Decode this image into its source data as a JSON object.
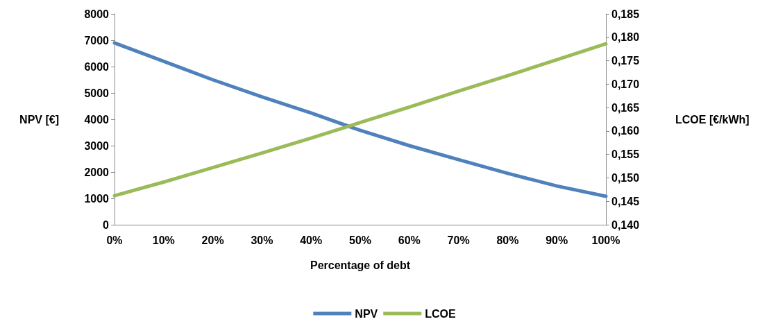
{
  "chart_data": {
    "type": "line",
    "xlabel": "Percentage of debt",
    "ylabel": "NPV [€]",
    "y2label": "LCOE [€/kWh]",
    "categories": [
      "0%",
      "10%",
      "20%",
      "30%",
      "40%",
      "50%",
      "60%",
      "70%",
      "80%",
      "90%",
      "100%"
    ],
    "series": [
      {
        "name": "NPV",
        "color": "#4f81bd",
        "values": [
          6900,
          6200,
          5500,
          4850,
          4240,
          3580,
          3000,
          2470,
          1950,
          1470,
          1080
        ]
      },
      {
        "name": "LCOE",
        "color": "#9bbb59",
        "axis": "y2",
        "values": [
          0.1462,
          0.1491,
          0.1522,
          0.1553,
          0.1585,
          0.1618,
          0.1651,
          0.1685,
          0.1718,
          0.1752,
          0.1786
        ]
      }
    ],
    "ylim": [
      0,
      8000
    ],
    "yticks": [
      0,
      1000,
      2000,
      3000,
      4000,
      5000,
      6000,
      7000,
      8000
    ],
    "y2lim": [
      0.14,
      0.185
    ],
    "y2ticks": [
      {
        "value": 0.14,
        "label": "0,140"
      },
      {
        "value": 0.145,
        "label": "0,145"
      },
      {
        "value": 0.15,
        "label": "0,150"
      },
      {
        "value": 0.155,
        "label": "0,155"
      },
      {
        "value": 0.16,
        "label": "0,160"
      },
      {
        "value": 0.165,
        "label": "0,165"
      },
      {
        "value": 0.17,
        "label": "0,170"
      },
      {
        "value": 0.175,
        "label": "0,175"
      },
      {
        "value": 0.18,
        "label": "0,180"
      },
      {
        "value": 0.185,
        "label": "0,185"
      }
    ],
    "grid": false,
    "legend": "bottom",
    "marker": "none",
    "line_style": "solid"
  }
}
